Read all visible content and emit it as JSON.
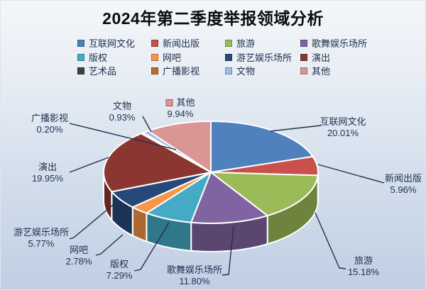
{
  "window": {
    "title": "2024年第二季度举报领域分析"
  },
  "colors": {
    "background_top": "#f4f6fa",
    "background_bottom": "#c0cfe4",
    "label_text": "#1f3150",
    "leader_line": "#22304d",
    "title_text": "#0c0c0c",
    "slice_border": "#ffffff"
  },
  "chart_data": {
    "type": "pie",
    "style": "3d-exploded-look",
    "title": "2024年第二季度举报领域分析",
    "legend_position": "top",
    "legend_rows": 3,
    "legend_columns": 4,
    "total": 100.0,
    "slices": [
      {
        "name": "互联网文化",
        "value": 20.01,
        "pct_text": "20.01%",
        "color": "#4F81BD"
      },
      {
        "name": "新闻出版",
        "value": 5.96,
        "pct_text": "5.96%",
        "color": "#C9504B"
      },
      {
        "name": "旅游",
        "value": 15.18,
        "pct_text": "15.18%",
        "color": "#9BBB59"
      },
      {
        "name": "歌舞娱乐场所",
        "value": 11.8,
        "pct_text": "11.80%",
        "color": "#8064A2"
      },
      {
        "name": "版权",
        "value": 7.29,
        "pct_text": "7.29%",
        "color": "#45AAC5"
      },
      {
        "name": "网吧",
        "value": 2.78,
        "pct_text": "2.78%",
        "color": "#F79646"
      },
      {
        "name": "游艺娱乐场所",
        "value": 5.77,
        "pct_text": "5.77%",
        "color": "#27497A"
      },
      {
        "name": "演出",
        "value": 19.95,
        "pct_text": "19.95%",
        "color": "#8C3631"
      },
      {
        "name": "艺术品",
        "value": 0.19,
        "pct_text": null,
        "color": "#404040"
      },
      {
        "name": "广播影视",
        "value": 0.2,
        "pct_text": "0.20%",
        "color": "#B66D31"
      },
      {
        "name": "文物",
        "value": 0.93,
        "pct_text": "0.93%",
        "color": "#9FBEE0"
      },
      {
        "name": "其他",
        "value": 9.94,
        "pct_text": "9.94%",
        "color": "#D99694"
      }
    ]
  }
}
